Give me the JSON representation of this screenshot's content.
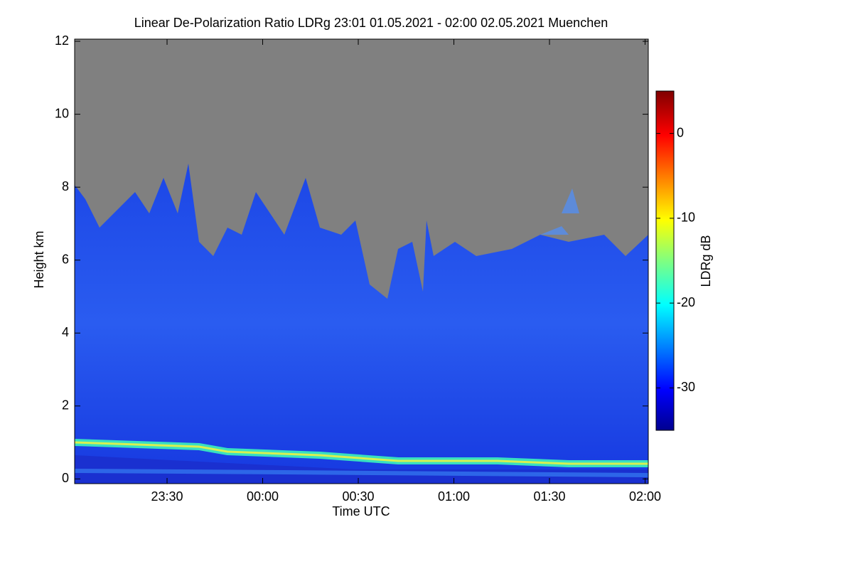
{
  "chart_data": {
    "type": "heatmap",
    "title": "Linear De-Polarization Ratio LDRg   23:01 01.05.2021 - 02:00 02.05.2021 Muenchen",
    "x_label": "Time UTC",
    "y_label": "Height km",
    "colorbar_label": "LDRg dB",
    "xlim": [
      1,
      181
    ],
    "xticks": [
      {
        "value": 30,
        "label": "23:30"
      },
      {
        "value": 60,
        "label": "00:00"
      },
      {
        "value": 90,
        "label": "00:30"
      },
      {
        "value": 120,
        "label": "01:00"
      },
      {
        "value": 150,
        "label": "01:30"
      },
      {
        "value": 180,
        "label": "02:00"
      }
    ],
    "ylim": [
      -0.13,
      12.06
    ],
    "yticks": [
      0,
      2,
      4,
      6,
      8,
      10,
      12
    ],
    "clim": [
      -35,
      5
    ],
    "cticks": [
      0,
      -10,
      -20,
      -30
    ],
    "colormap": "jet"
  }
}
